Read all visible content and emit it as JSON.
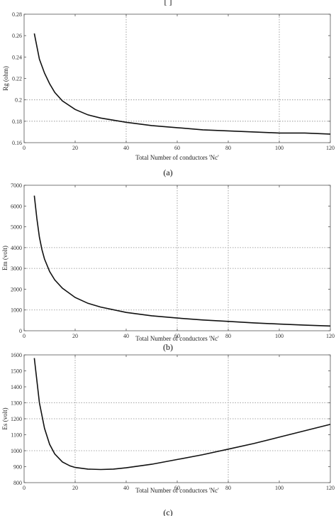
{
  "top_clip_text": "[ ]",
  "chart_data": [
    {
      "type": "line",
      "xlabel": "Total Number of conductors 'Nc'",
      "ylabel": "Rg (ohm)",
      "caption": "(a)",
      "xlim": [
        0,
        120
      ],
      "ylim": [
        0.16,
        0.28
      ],
      "xticks": [
        0,
        20,
        40,
        60,
        80,
        100,
        120
      ],
      "xtick_labels": [
        "0",
        "20",
        "40",
        "60",
        "80",
        "100",
        "120"
      ],
      "yticks": [
        0.16,
        0.18,
        0.2,
        0.22,
        0.24,
        0.26,
        0.28
      ],
      "ytick_labels": [
        "0.16",
        "0.18",
        "0.2",
        "0.22",
        "0.24",
        "0.26",
        "0.28"
      ],
      "grid_x": [
        40,
        100
      ],
      "grid_y": [
        0.18,
        0.2
      ],
      "series": [
        {
          "x": [
            4,
            6,
            8,
            10,
            12,
            15,
            20,
            25,
            30,
            40,
            50,
            60,
            70,
            80,
            90,
            100,
            110,
            120
          ],
          "y": [
            0.262,
            0.238,
            0.225,
            0.215,
            0.207,
            0.199,
            0.191,
            0.186,
            0.183,
            0.179,
            0.176,
            0.174,
            0.172,
            0.171,
            0.17,
            0.169,
            0.169,
            0.168
          ]
        }
      ]
    },
    {
      "type": "line",
      "xlabel": "Total Number of conductors 'Nc'",
      "ylabel": "Em (volt)",
      "caption": "(b)",
      "xlim": [
        0,
        120
      ],
      "ylim": [
        0,
        7000
      ],
      "xticks": [
        0,
        20,
        40,
        60,
        80,
        100,
        120
      ],
      "xtick_labels": [
        "0",
        "20",
        "40",
        "60",
        "80",
        "100",
        "120"
      ],
      "yticks": [
        0,
        1000,
        2000,
        3000,
        4000,
        5000,
        6000,
        7000
      ],
      "ytick_labels": [
        "0",
        "1000",
        "2000",
        "3000",
        "4000",
        "5000",
        "6000",
        "7000"
      ],
      "grid_x": [
        60,
        80
      ],
      "grid_y": [
        1000,
        3000,
        4000
      ],
      "series": [
        {
          "x": [
            4,
            5,
            6,
            7,
            8,
            10,
            12,
            15,
            20,
            25,
            30,
            40,
            50,
            60,
            70,
            80,
            90,
            100,
            110,
            120
          ],
          "y": [
            6500,
            5400,
            4500,
            3900,
            3450,
            2850,
            2450,
            2050,
            1600,
            1320,
            1140,
            880,
            720,
            610,
            520,
            450,
            380,
            320,
            270,
            230
          ]
        }
      ]
    },
    {
      "type": "line",
      "xlabel": "Total Number of conductors 'Nc'",
      "ylabel": "Es (volt)",
      "caption": "(c)",
      "xlim": [
        0,
        120
      ],
      "ylim": [
        800,
        1600
      ],
      "xticks": [
        0,
        20,
        40,
        60,
        80,
        100,
        120
      ],
      "xtick_labels": [
        "0",
        "20",
        "40",
        "60",
        "80",
        "100",
        "120"
      ],
      "yticks": [
        800,
        900,
        1000,
        1100,
        1200,
        1300,
        1400,
        1500,
        1600
      ],
      "ytick_labels": [
        "800",
        "900",
        "1000",
        "1100",
        "1200",
        "1300",
        "1400",
        "1500",
        "1600"
      ],
      "grid_x": [
        20,
        80
      ],
      "grid_y": [
        1000,
        1200,
        1300
      ],
      "series": [
        {
          "x": [
            4,
            6,
            8,
            10,
            12,
            15,
            18,
            20,
            25,
            30,
            35,
            40,
            50,
            60,
            70,
            80,
            90,
            100,
            110,
            120
          ],
          "y": [
            1580,
            1300,
            1140,
            1040,
            980,
            930,
            905,
            895,
            885,
            882,
            885,
            893,
            915,
            945,
            975,
            1010,
            1045,
            1085,
            1125,
            1165
          ]
        }
      ]
    }
  ]
}
